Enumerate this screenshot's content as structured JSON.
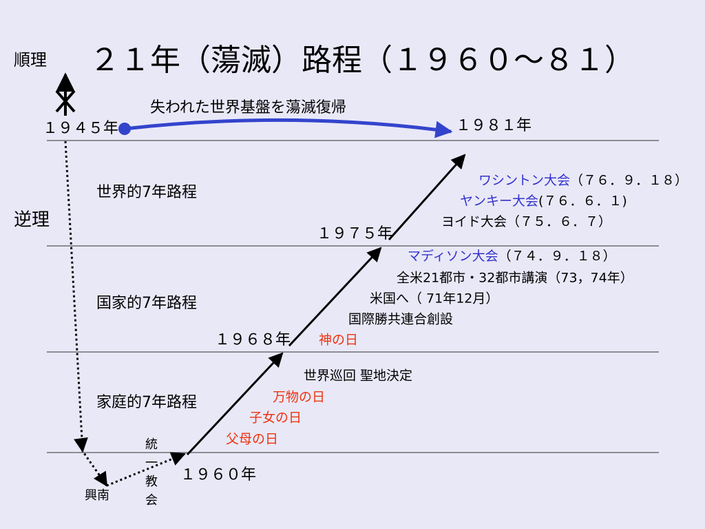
{
  "title": "２１年（蕩滅）路程（１９６０～８１）",
  "side_labels": {
    "forward": "順理",
    "reverse": "逆理"
  },
  "restoration": "失われた世界基盤を蕩滅復帰",
  "years": {
    "start_1945": "１９４５年",
    "end_1981": "１９８１年",
    "y1975": "１９７５年",
    "y1968": "１９６８年",
    "y1960": "１９６０年"
  },
  "stages": [
    "世界的7年路程",
    "国家的7年路程",
    "家庭的7年路程"
  ],
  "events": [
    {
      "name": "ワシントン大会",
      "date": "（７６．９．１８）"
    },
    {
      "name": "ヤンキー大会",
      "date": "(７６．６．１)"
    },
    {
      "name": "ヨイド大会",
      "date": "（７５．６．７）"
    },
    {
      "name": "マディソン大会",
      "date": "（７４．９．１８）"
    },
    {
      "name": "全米21都市・32都市講演（73，74年）"
    },
    {
      "name": "米国へ（ 71年12月）"
    },
    {
      "name": "国際勝共連合創設"
    },
    {
      "name": "神の日"
    },
    {
      "name": "世界巡回 聖地決定"
    },
    {
      "name": "万物の日"
    },
    {
      "name": "子女の日"
    },
    {
      "name": "父母の日"
    }
  ],
  "church": "統一教会",
  "place": "興南"
}
